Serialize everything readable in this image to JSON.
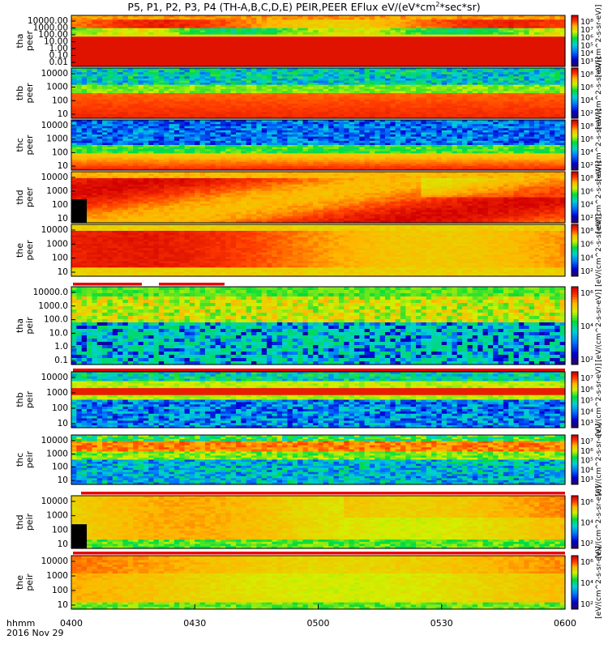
{
  "title": "P5, P1, P2, P3, P4 (TH-A,B,C,D,E) PEIR,PEER EFlux eV/(eV*cm",
  "title_tail": "*sec*sr)",
  "title_sup": "2",
  "colorbar_units": "[eV/(cm^2-s-sr-eV)]",
  "colors": {
    "cold": "#0000aa",
    "mid": "#00c8c8",
    "warm": "#ffe000",
    "hot": "#e80000",
    "bar_flag": "#e80000"
  },
  "time_axis": {
    "label": "hhmm",
    "date": "2016 Nov 29",
    "ticks": [
      "0400",
      "0430",
      "0500",
      "0530",
      "0600"
    ]
  },
  "chart_data": {
    "type": "heatmap",
    "x_range": [
      "04:00",
      "06:00"
    ],
    "panels": [
      {
        "probe": "tha",
        "species": "peer",
        "yticks": [
          "10000.00",
          "1000.00",
          "100.00",
          "10.00",
          "1.00",
          "0.10",
          "0.01"
        ],
        "cbar_ticks": [
          "10⁸",
          "10⁷",
          "10⁶",
          "10⁵",
          "10⁴",
          "10³"
        ],
        "style": "tha_peer"
      },
      {
        "probe": "thb",
        "species": "peer",
        "yticks": [
          "10000",
          "1000",
          "100",
          "10"
        ],
        "cbar_ticks": [
          "10⁸",
          "10⁶",
          "10⁴",
          "10²"
        ],
        "style": "e_flat"
      },
      {
        "probe": "thc",
        "species": "peer",
        "yticks": [
          "10000",
          "1000",
          "100",
          "10"
        ],
        "cbar_ticks": [
          "10⁸",
          "10⁶",
          "10⁴",
          "10²"
        ],
        "style": "e_noise"
      },
      {
        "probe": "thd",
        "species": "peer",
        "yticks": [
          "10000",
          "1000",
          "100",
          "10"
        ],
        "cbar_ticks": [
          "10⁸",
          "10⁶",
          "10⁴",
          "10²"
        ],
        "style": "e_hot"
      },
      {
        "probe": "the",
        "species": "peer",
        "yticks": [
          "10000",
          "1000",
          "100",
          "10"
        ],
        "cbar_ticks": [
          "10⁸",
          "10⁶",
          "10⁴",
          "10²"
        ],
        "style": "e_hot2"
      },
      {
        "probe": "tha",
        "species": "peir",
        "yticks": [
          "10000.0",
          "1000.0",
          "100.0",
          "10.0",
          "1.0",
          "0.1"
        ],
        "cbar_ticks": [
          "10⁶",
          "10⁴",
          "10²"
        ],
        "style": "i_tha"
      },
      {
        "probe": "thb",
        "species": "peir",
        "yticks": [
          "10000",
          "1000",
          "100",
          "10"
        ],
        "cbar_ticks": [
          "10⁷",
          "10⁶",
          "10⁵",
          "10⁴",
          "10³"
        ],
        "style": "i_band"
      },
      {
        "probe": "thc",
        "species": "peir",
        "yticks": [
          "10000",
          "1000",
          "100",
          "10"
        ],
        "cbar_ticks": [
          "10⁷",
          "10⁶",
          "10⁵",
          "10⁴",
          "10³"
        ],
        "style": "i_band2"
      },
      {
        "probe": "thd",
        "species": "peir",
        "yticks": [
          "10000",
          "1000",
          "100",
          "10"
        ],
        "cbar_ticks": [
          "10⁶",
          "10⁴",
          "10²"
        ],
        "style": "i_warm"
      },
      {
        "probe": "the",
        "species": "peir",
        "yticks": [
          "10000",
          "1000",
          "100",
          "10"
        ],
        "cbar_ticks": [
          "10⁶",
          "10⁴",
          "10²"
        ],
        "style": "i_warm2"
      }
    ]
  }
}
